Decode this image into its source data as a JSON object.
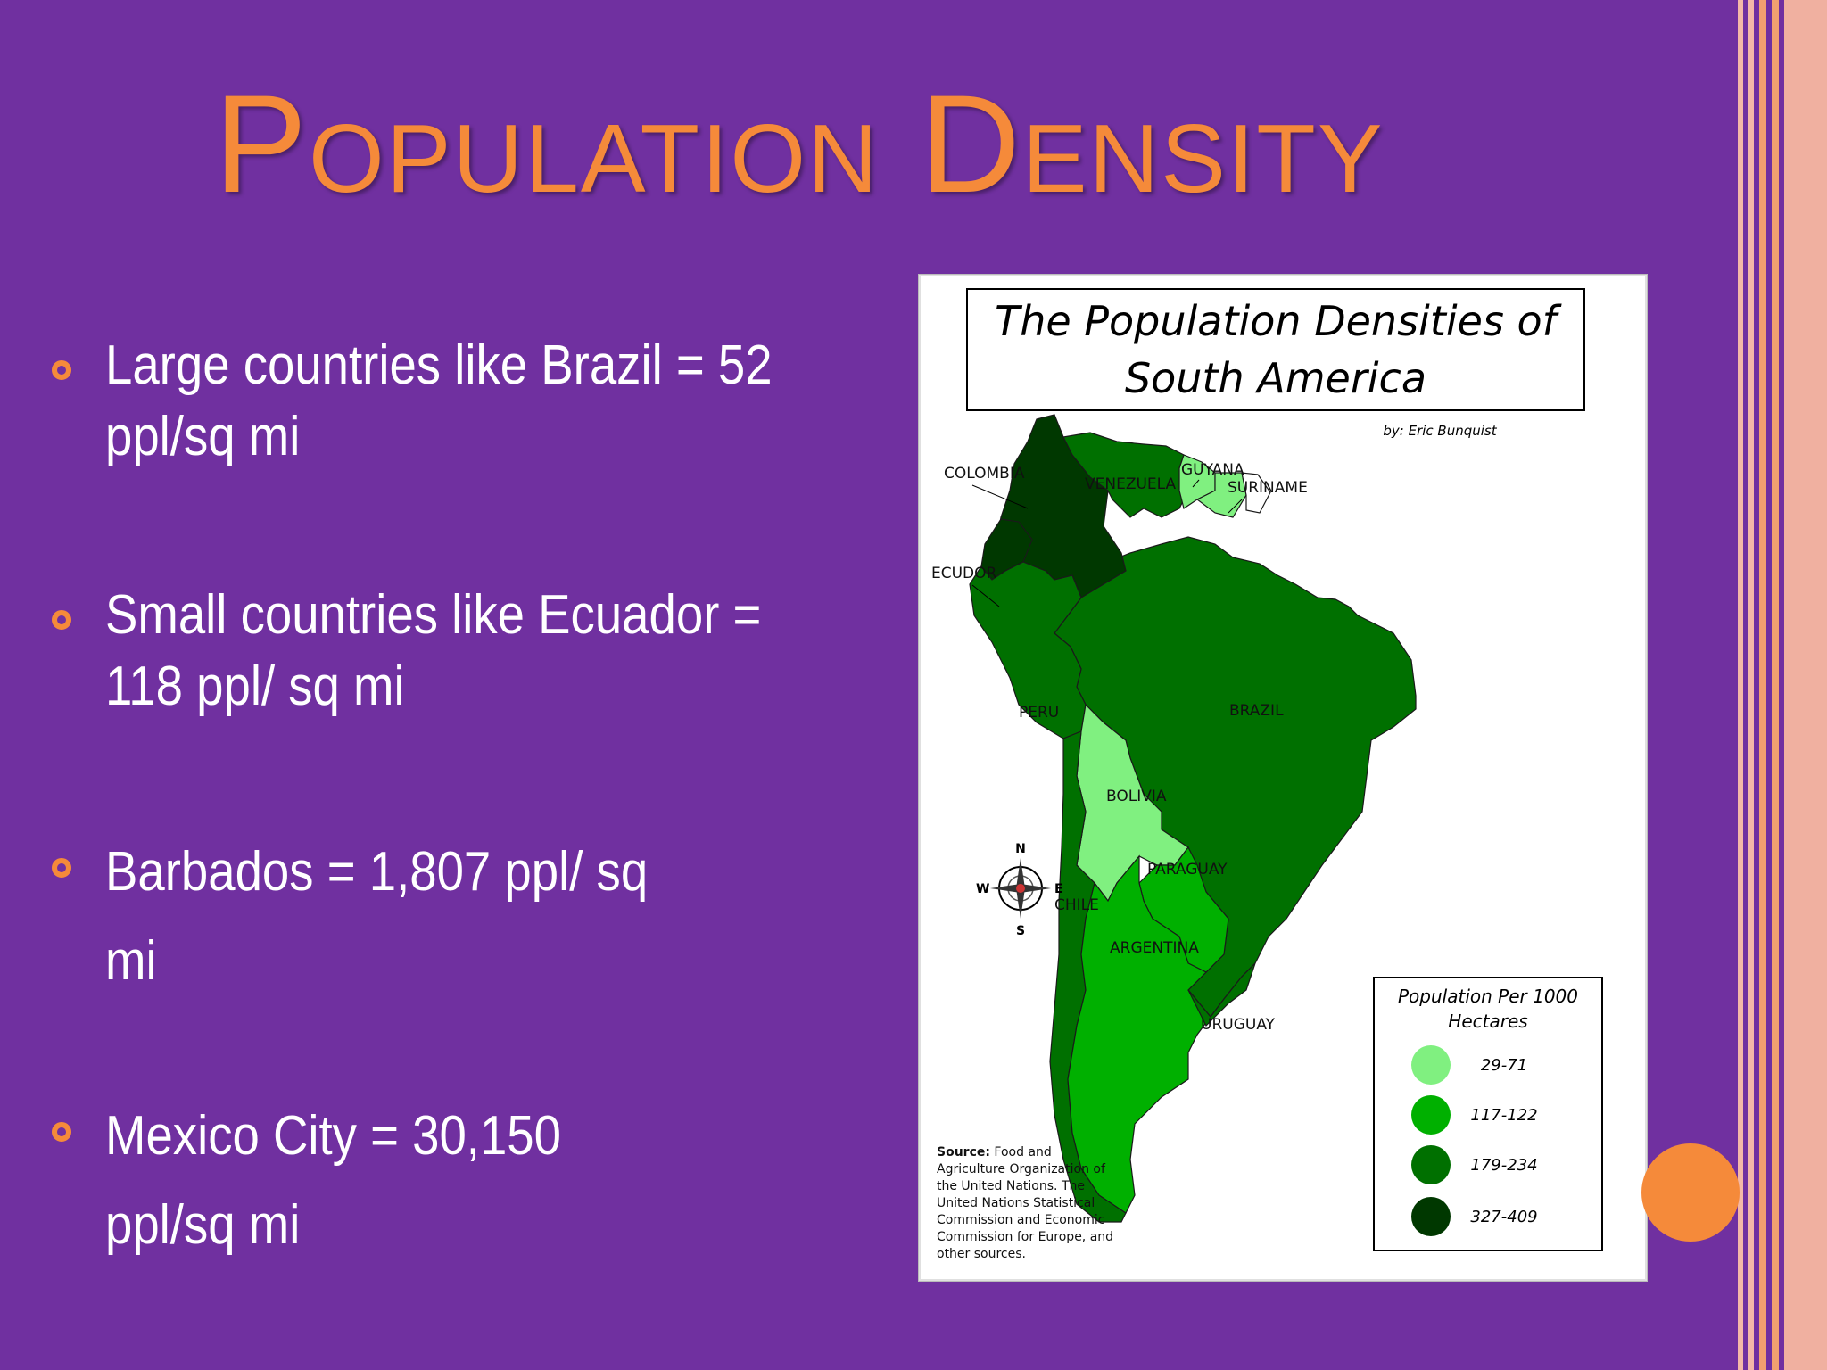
{
  "slide": {
    "title": "Population Density",
    "bullets": [
      {
        "text": "Large countries like Brazil = 52\nppl/sq mi"
      },
      {
        "text": "Small countries like Ecuador =\n118 ppl/ sq mi"
      },
      {
        "text": "Barbados = 1,807 ppl/ sq\n                             mi"
      },
      {
        "text": "Mexico City = 30,150\n                     ppl/sq mi"
      }
    ],
    "colors": {
      "background": "#7030a0",
      "accent": "#f58a3a",
      "text": "#ffffff"
    }
  },
  "map": {
    "title_line1": "The Population Densities of",
    "title_line2": "South America",
    "byline": "by: Eric Bunquist",
    "countries": {
      "colombia": "COLOMBIA",
      "venezuela": "VENEZUELA",
      "guyana": "GUYANA",
      "suriname": "SURINAME",
      "ecuador": "ECUDOR",
      "peru": "PERU",
      "brazil": "BRAZIL",
      "bolivia": "BOLIVIA",
      "paraguay": "PARAGUAY",
      "chile": "CHILE",
      "argentina": "ARGENTINA",
      "uruguay": "URUGUAY"
    },
    "compass": {
      "n": "N",
      "s": "S",
      "e": "E",
      "w": "W"
    },
    "source_label": "Source:",
    "source_lines": [
      " Food and",
      "Agriculture Organization of",
      "the United Nations.  The",
      "United Nations Statistical",
      "Commission and Economic",
      "Commission for Europe, and",
      "other sources."
    ],
    "legend": {
      "title_line1": "Population Per 1000",
      "title_line2": "Hectares",
      "items": [
        {
          "label": "29-71",
          "color": "#80f080"
        },
        {
          "label": "117-122",
          "color": "#00b000"
        },
        {
          "label": "179-234",
          "color": "#007000"
        },
        {
          "label": "327-409",
          "color": "#003800"
        }
      ]
    },
    "density_colors": {
      "light": "#80f080",
      "bright": "#00b000",
      "medium": "#007000",
      "dark": "#003800"
    }
  }
}
